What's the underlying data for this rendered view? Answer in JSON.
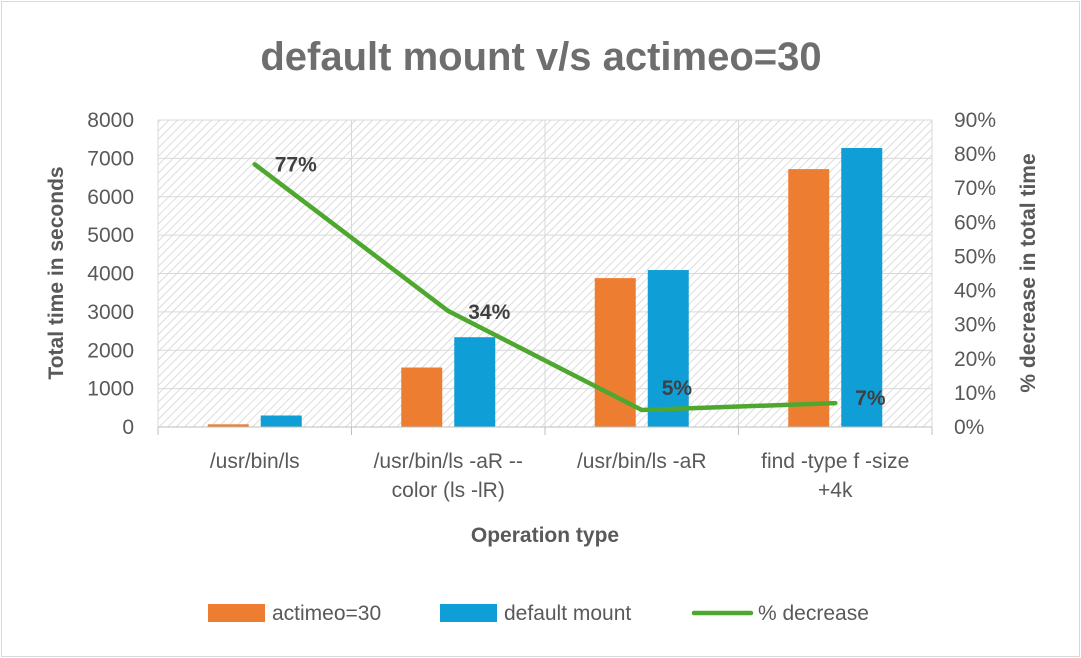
{
  "chart_data": {
    "type": "bar",
    "title": "default mount v/s actimeo=30",
    "xlabel": "Operation type",
    "ylabel": "Total time in seconds",
    "y2label": "% decrease in total time",
    "ylim": [
      0,
      8000
    ],
    "y2lim": [
      0,
      90
    ],
    "yticks": [
      "0",
      "1000",
      "2000",
      "3000",
      "4000",
      "5000",
      "6000",
      "7000",
      "8000"
    ],
    "y2ticks": [
      "0%",
      "10%",
      "20%",
      "30%",
      "40%",
      "50%",
      "60%",
      "70%",
      "80%",
      "90%"
    ],
    "categories": [
      [
        "/usr/bin/ls"
      ],
      [
        "/usr/bin/ls -aR --",
        "color (ls -lR)"
      ],
      [
        "/usr/bin/ls -aR"
      ],
      [
        "find -type f -size",
        "+4k"
      ]
    ],
    "series": [
      {
        "name": "actimeo=30",
        "type": "bar",
        "axis": "left",
        "color": "#ed7d31",
        "values": [
          70,
          1550,
          3880,
          6720
        ]
      },
      {
        "name": "default mount",
        "type": "bar",
        "axis": "left",
        "color": "#0f9ed5",
        "values": [
          300,
          2340,
          4090,
          7270
        ]
      },
      {
        "name": "% decrease",
        "type": "line",
        "axis": "right",
        "color": "#4ea72e",
        "values": [
          77,
          34,
          5,
          7
        ],
        "labels": [
          "77%",
          "34%",
          "5%",
          "7%"
        ]
      }
    ],
    "grid": true,
    "legend_position": "bottom"
  }
}
